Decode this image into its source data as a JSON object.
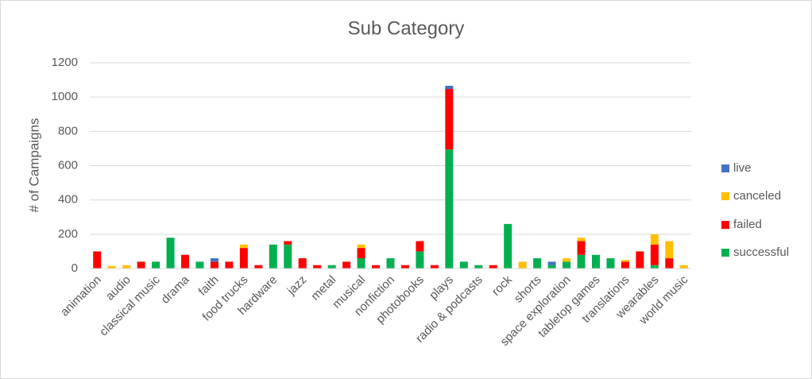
{
  "chart_data": {
    "type": "bar",
    "stacked": true,
    "title": "Sub Category",
    "y_label": "# of Campaigns",
    "categories": [
      "animation",
      null,
      "audio",
      null,
      "classical music",
      null,
      "drama",
      null,
      "faith",
      null,
      "food trucks",
      null,
      "hardware",
      null,
      "jazz",
      null,
      "metal",
      null,
      "musical",
      null,
      "nonfiction",
      null,
      "photobooks",
      null,
      "plays",
      null,
      "radio & podcasts",
      null,
      "rock",
      null,
      "shorts",
      null,
      "space exploration",
      null,
      "tabletop games",
      null,
      "translations",
      null,
      "wearables",
      null,
      "world music"
    ],
    "series": [
      {
        "name": "successful",
        "color": "#00b050",
        "values": [
          0,
          0,
          0,
          0,
          40,
          180,
          0,
          40,
          0,
          0,
          0,
          0,
          140,
          140,
          0,
          0,
          20,
          0,
          60,
          0,
          60,
          0,
          100,
          0,
          694,
          40,
          20,
          0,
          260,
          0,
          60,
          20,
          40,
          80,
          80,
          60,
          0,
          0,
          20,
          0,
          0
        ]
      },
      {
        "name": "failed",
        "color": "#ff0000",
        "values": [
          100,
          0,
          0,
          40,
          0,
          0,
          80,
          0,
          40,
          40,
          120,
          20,
          0,
          20,
          60,
          20,
          0,
          40,
          60,
          20,
          0,
          20,
          60,
          20,
          353,
          0,
          0,
          20,
          0,
          0,
          0,
          0,
          0,
          80,
          0,
          0,
          40,
          100,
          120,
          60,
          0
        ]
      },
      {
        "name": "canceled",
        "color": "#ffc000",
        "values": [
          0,
          15,
          20,
          0,
          0,
          0,
          0,
          0,
          0,
          0,
          20,
          0,
          0,
          0,
          0,
          0,
          0,
          0,
          20,
          0,
          0,
          0,
          0,
          0,
          0,
          0,
          0,
          0,
          0,
          40,
          0,
          0,
          20,
          20,
          0,
          0,
          10,
          0,
          60,
          100,
          20
        ]
      },
      {
        "name": "live",
        "color": "#4472c4",
        "values": [
          0,
          0,
          0,
          0,
          0,
          0,
          0,
          0,
          20,
          0,
          0,
          0,
          0,
          0,
          0,
          0,
          0,
          0,
          0,
          0,
          0,
          0,
          0,
          0,
          19,
          0,
          0,
          0,
          0,
          0,
          0,
          20,
          0,
          0,
          0,
          0,
          0,
          0,
          0,
          0,
          0
        ]
      }
    ],
    "ylim": [
      0,
      1200
    ],
    "yticks": [
      0,
      200,
      400,
      600,
      800,
      1000,
      1200
    ],
    "grid": true,
    "legend": "right"
  }
}
